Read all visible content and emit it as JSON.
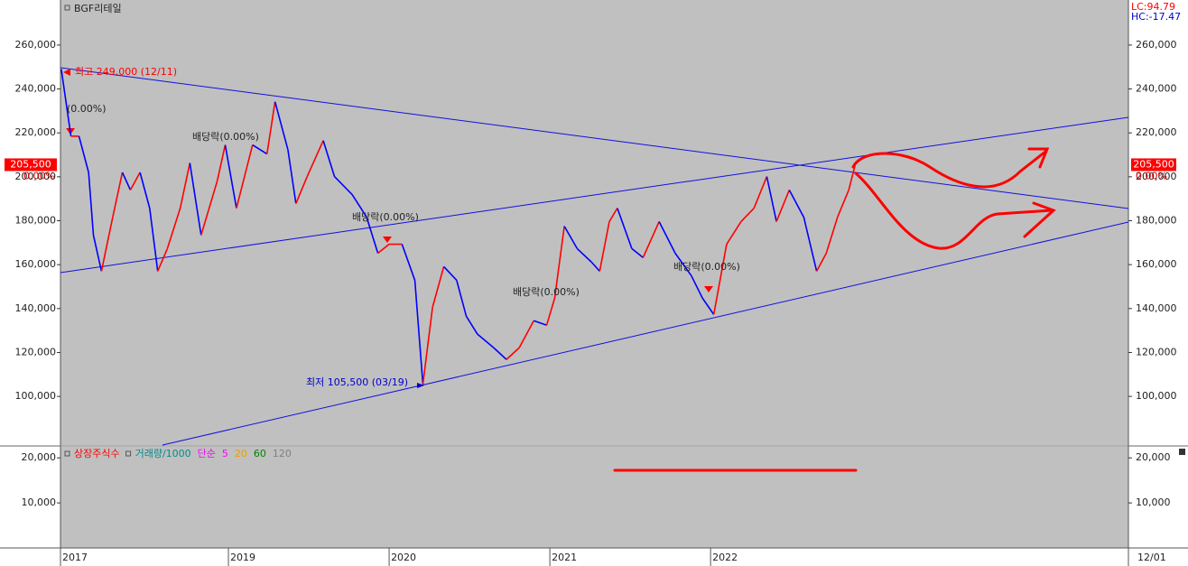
{
  "chart_data": {
    "type": "line",
    "title": "BGF리테일",
    "x": [
      2017.96,
      2018.02,
      2018.07,
      2018.13,
      2018.16,
      2018.21,
      2018.28,
      2018.34,
      2018.39,
      2018.45,
      2018.51,
      2018.56,
      2018.62,
      2018.7,
      2018.76,
      2018.83,
      2018.93,
      2018.98,
      2019.05,
      2019.15,
      2019.24,
      2019.29,
      2019.37,
      2019.42,
      2019.49,
      2019.59,
      2019.66,
      2019.77,
      2019.86,
      2019.93,
      2020.0,
      2020.08,
      2020.16,
      2020.21,
      2020.27,
      2020.34,
      2020.42,
      2020.48,
      2020.55,
      2020.65,
      2020.73,
      2020.81,
      2020.9,
      2020.98,
      2021.03,
      2021.09,
      2021.17,
      2021.26,
      2021.31,
      2021.37,
      2021.42,
      2021.51,
      2021.58,
      2021.68,
      2021.78,
      2021.88,
      2021.95,
      2022.02,
      2022.1,
      2022.19,
      2022.27,
      2022.35,
      2022.41,
      2022.49,
      2022.58,
      2022.66,
      2022.72,
      2022.79,
      2022.86,
      2022.9
    ],
    "values": [
      249000,
      218500,
      218500,
      202000,
      173400,
      157000,
      181600,
      202000,
      194000,
      202000,
      185700,
      157000,
      167300,
      185700,
      206300,
      173400,
      198000,
      214500,
      185700,
      214500,
      210400,
      234200,
      212400,
      187800,
      200100,
      216500,
      200100,
      191900,
      181600,
      165200,
      169300,
      169300,
      152900,
      105500,
      140600,
      159100,
      152900,
      136500,
      128300,
      122200,
      116800,
      122200,
      134500,
      132400,
      144700,
      177500,
      167300,
      161100,
      157000,
      179600,
      185700,
      167300,
      163200,
      179600,
      165200,
      155000,
      144700,
      137300,
      169300,
      179600,
      185700,
      200100,
      179600,
      194000,
      181600,
      157000,
      165200,
      181600,
      194000,
      205500
    ],
    "up_color": "#ff0000",
    "down_color": "#0000ff",
    "xlim": [
      2017.955,
      2024.6
    ],
    "xticks": [
      {
        "value": 2017.955,
        "label": "2017"
      },
      {
        "value": 2019,
        "label": "2019"
      },
      2020,
      2021,
      2022
    ],
    "ylim": [
      77850,
      280100
    ],
    "yticks": [
      {
        "value": 100000,
        "label": "100,000"
      },
      {
        "value": 120000,
        "label": "120,000"
      },
      {
        "value": 140000,
        "label": "140,000"
      },
      {
        "value": 160000,
        "label": "160,000"
      },
      {
        "value": 180000,
        "label": "180,000"
      },
      {
        "value": 200000,
        "label": "200,000"
      },
      {
        "value": 220000,
        "label": "220,000"
      },
      {
        "value": 240000,
        "label": "240,000"
      },
      {
        "value": 260000,
        "label": "260,000"
      }
    ],
    "last_price": {
      "value": 205500,
      "label": "205,500"
    },
    "last_change": "0.00%",
    "indicators": [
      {
        "text": "LC:94.79",
        "color": "#ff0000"
      },
      {
        "text": "HC:-17.47",
        "color": "#0000cc"
      }
    ],
    "end_date": "12/01",
    "annotations": [
      {
        "text": "최고 249,000 (12/11)",
        "color": "#ff0000"
      },
      {
        "text": "최저 105,500 (03/19)",
        "color": "#0000cc"
      },
      {
        "text": "(0.00%)",
        "color": "#222222"
      },
      {
        "text": "배당락(0.00%)",
        "color": "#222222"
      },
      {
        "text": "배당락(0.00%)",
        "color": "#222222"
      },
      {
        "text": "배당락(0.00%)",
        "color": "#222222"
      },
      {
        "text": "배당락(0.00%)",
        "color": "#222222"
      }
    ],
    "volume_panel": {
      "legend": [
        {
          "text": "상장주식수",
          "color": "#ff0000"
        },
        {
          "text": "거래량/1000",
          "color": "#008b8b"
        },
        {
          "text": "단순",
          "color": "#ff00ff"
        },
        {
          "text": "5",
          "color": "#ff00ff"
        },
        {
          "text": "20",
          "color": "#e8a000"
        },
        {
          "text": "60",
          "color": "#008000"
        },
        {
          "text": "120",
          "color": "#808080"
        }
      ],
      "ylim": [
        0,
        22450
      ],
      "yticks": [
        {
          "value": 10000,
          "label": "10,000"
        },
        {
          "value": 20000,
          "label": "20,000"
        }
      ]
    }
  }
}
